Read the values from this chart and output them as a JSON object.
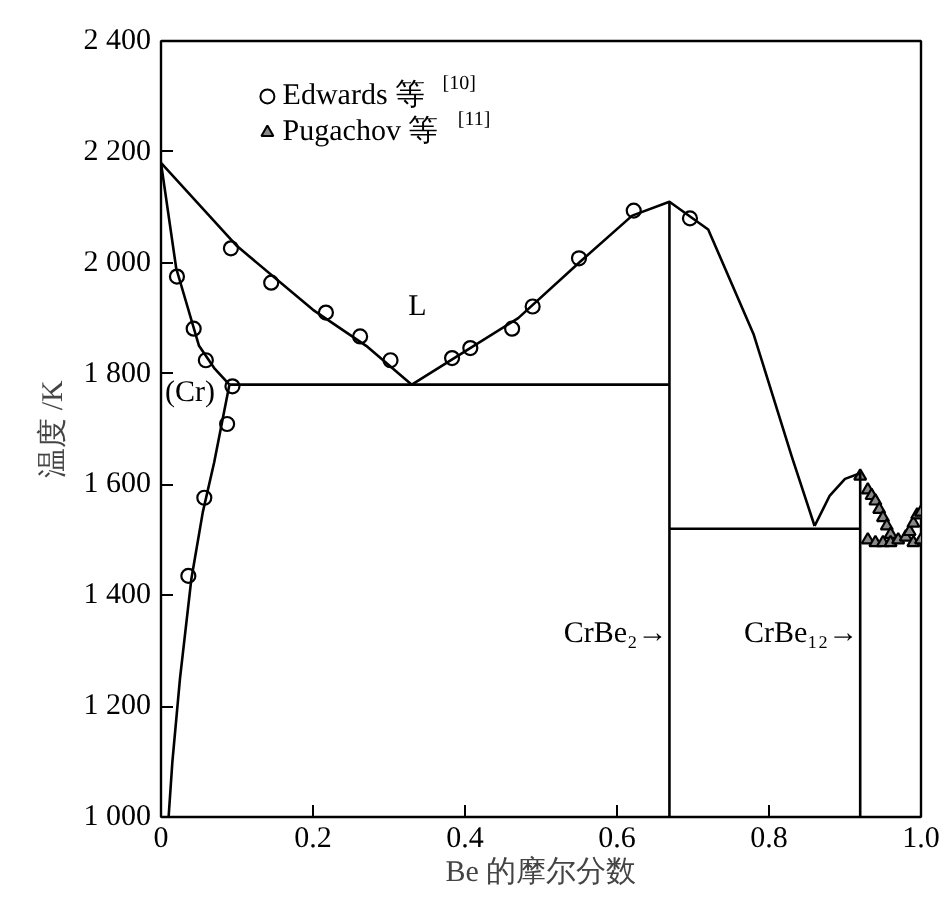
{
  "chart_data": {
    "type": "line",
    "xlabel": "Be 的摩尔分数",
    "ylabel": "温度 /K",
    "xlim": [
      0,
      1
    ],
    "ylim": [
      1000,
      2400
    ],
    "xticks": [
      0,
      0.2,
      0.4,
      0.6,
      0.8,
      {
        "value": 1,
        "label": "1.0"
      }
    ],
    "yticks": [
      {
        "value": 1000,
        "label": "1 000"
      },
      {
        "value": 1200,
        "label": "1 200"
      },
      {
        "value": 1400,
        "label": "1 400"
      },
      {
        "value": 1600,
        "label": "1 600"
      },
      {
        "value": 1800,
        "label": "1 800"
      },
      {
        "value": 2000,
        "label": "2 000"
      },
      {
        "value": 2200,
        "label": "2 200"
      },
      {
        "value": 2400,
        "label": "2 400"
      }
    ],
    "grid": false,
    "legend": "top",
    "line_style": "solid",
    "series": [
      {
        "type": "scatter",
        "marker": "circle",
        "name": "Edwards 等 $^{[10]}$",
        "color": "#000000",
        "x": [
          0.021,
          0.043,
          0.059,
          0.094,
          0.087,
          0.092,
          0.145,
          0.217,
          0.262,
          0.302,
          0.383,
          0.407,
          0.462,
          0.489,
          0.55,
          0.622,
          0.696,
          0.036,
          0.057
        ],
        "values": [
          1975,
          1881,
          1824,
          1777,
          1709,
          2026,
          1964,
          1910,
          1867,
          1824,
          1828,
          1846,
          1881,
          1921,
          2008,
          2094,
          2080,
          1435,
          1576
        ]
      },
      {
        "type": "scatter",
        "marker": "triangle",
        "name": "Pugachov 等 $^{[11]}$",
        "color": "#000000",
        "x": [
          0.92,
          0.93,
          0.935,
          0.94,
          0.945,
          0.95,
          0.955,
          0.96,
          0.93,
          0.94,
          0.95,
          0.96,
          0.97,
          0.98,
          0.985,
          0.99,
          0.995,
          1.0,
          0.99,
          1.0
        ],
        "values": [
          1615,
          1590,
          1580,
          1570,
          1555,
          1540,
          1525,
          1510,
          1500,
          1495,
          1495,
          1495,
          1500,
          1505,
          1515,
          1530,
          1545,
          1550,
          1495,
          1500
        ]
      },
      {
        "type": "line",
        "color": "#000000",
        "x": [
          0,
          0.1,
          0.2,
          0.27,
          0.33
        ],
        "values": [
          2180,
          2030,
          1915,
          1850,
          1780
        ]
      },
      {
        "type": "line",
        "color": "#000000",
        "x": [
          0.33,
          0.4,
          0.47,
          0.55,
          0.62,
          0.669,
          0.72,
          0.78,
          0.83,
          0.86
        ],
        "values": [
          1780,
          1840,
          1900,
          2000,
          2085,
          2110,
          2060,
          1870,
          1650,
          1525
        ]
      },
      {
        "color": "#000000",
        "x": [
          0.86,
          0.88,
          0.9,
          0.92,
          0.92
        ],
        "values": [
          1525,
          1580,
          1610,
          1620,
          1000
        ]
      },
      {
        "type": "line",
        "color": "#000000",
        "x": [
          0,
          0.02,
          0.05,
          0.07,
          0.09
        ],
        "values": [
          2180,
          1990,
          1850,
          1810,
          1780
        ]
      },
      {
        "type": "line",
        "color": "#000000",
        "x": [
          0.09,
          0.07,
          0.055,
          0.04,
          0.025,
          0.015,
          0.01
        ],
        "values": [
          1780,
          1640,
          1550,
          1430,
          1250,
          1100,
          1000
        ]
      },
      {
        "type": "line",
        "color": "#000000",
        "x": [
          0.09,
          0.669
        ],
        "values": [
          1780,
          1780
        ]
      },
      {
        "type": "line",
        "color": "#000000",
        "x": [
          0.669,
          0.92
        ],
        "values": [
          1520,
          1520
        ]
      },
      {
        "color": "#000000",
        "x": [
          0.669,
          0.669
        ],
        "values": [
          1000,
          2110
        ]
      }
    ],
    "annotations": [
      "L",
      "(Cr)",
      {
        "text": "CrBe₂→",
        "x": 0.669,
        "y": 1330
      },
      {
        "text": "CrBe₁₂→",
        "x": 0.92,
        "y": 1330
      }
    ]
  }
}
